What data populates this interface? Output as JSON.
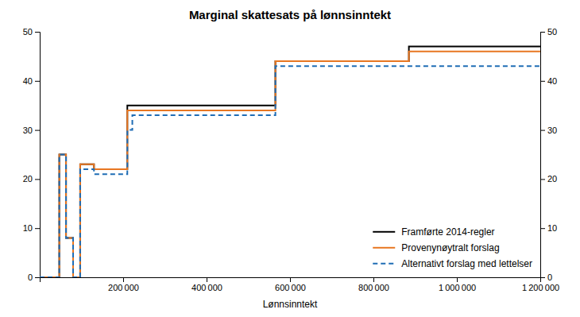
{
  "chart_data": {
    "type": "line",
    "title": "Marginal skattesats på lønnsinntekt",
    "x_label": "Lønnsinntekt",
    "xlim": [
      0,
      1200000
    ],
    "ylim": [
      0,
      50
    ],
    "y2lim": [
      0,
      50
    ],
    "xticks": [
      {
        "value": 200000,
        "label": "200 000"
      },
      {
        "value": 400000,
        "label": "400 000"
      },
      {
        "value": 600000,
        "label": "600 000"
      },
      {
        "value": 800000,
        "label": "800 000"
      },
      {
        "value": 1000000,
        "label": "1 000 000"
      },
      {
        "value": 1200000,
        "label": "1 200 000"
      }
    ],
    "yticks": [
      0,
      10,
      20,
      30,
      40,
      50
    ],
    "y2ticks": [
      0,
      10,
      20,
      30,
      40,
      50
    ],
    "grid": false,
    "legend": "lower right",
    "series": [
      {
        "name": "Framførte 2014-regler",
        "color": "#000000",
        "line_style": "solid",
        "x": [
          0,
          47000,
          47000,
          63000,
          63000,
          80000,
          80000,
          97000,
          97000,
          130000,
          130000,
          210000,
          210000,
          565000,
          565000,
          885000,
          885000,
          1200000
        ],
        "values": [
          0,
          0,
          25,
          25,
          8,
          8,
          0,
          0,
          23,
          23,
          22,
          22,
          35,
          35,
          44,
          44,
          47,
          47
        ]
      },
      {
        "name": "Provenynøytralt forslag",
        "color": "#E87722",
        "line_style": "solid",
        "x": [
          0,
          47000,
          47000,
          63000,
          63000,
          80000,
          80000,
          97000,
          97000,
          130000,
          130000,
          210000,
          210000,
          565000,
          565000,
          885000,
          885000,
          1200000
        ],
        "values": [
          0,
          0,
          25,
          25,
          8,
          8,
          0,
          0,
          23,
          23,
          22,
          22,
          34,
          34,
          44,
          44,
          46,
          46
        ]
      },
      {
        "name": "Alternativt forslag med lettelser",
        "color": "#1F6DB5",
        "line_style": "dashed",
        "x": [
          0,
          47000,
          47000,
          63000,
          63000,
          80000,
          80000,
          97000,
          97000,
          130000,
          130000,
          210000,
          210000,
          222000,
          222000,
          565000,
          565000,
          885000,
          885000,
          1200000
        ],
        "values": [
          0,
          0,
          25,
          25,
          8,
          8,
          0,
          0,
          22,
          22,
          21,
          21,
          30,
          30,
          33,
          33,
          43,
          43,
          43,
          43
        ]
      }
    ]
  }
}
